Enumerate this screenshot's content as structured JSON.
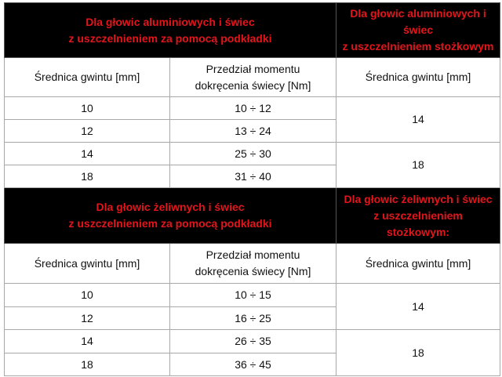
{
  "sections": [
    {
      "left_title": [
        "Dla głowic aluminiowych i świec",
        "z uszczelnieniem za pomocą podkładki"
      ],
      "right_title": [
        "Dla głowic aluminiowych i",
        "świec",
        "z uszczelnieniem stożkowym"
      ],
      "col_thread": "Średnica gwintu [mm]",
      "col_torque": [
        "Przedział momentu",
        "dokręcenia świecy [Nm]"
      ],
      "col_right": "Średnica gwintu [mm]",
      "rows": [
        {
          "d": "10",
          "t": "10 ÷ 12"
        },
        {
          "d": "12",
          "t": "13 ÷ 24"
        },
        {
          "d": "14",
          "t": "25 ÷ 30"
        },
        {
          "d": "18",
          "t": "31 ÷ 40"
        }
      ],
      "right_values": [
        "14",
        "18"
      ]
    },
    {
      "left_title": [
        "Dla głowic żeliwnych i świec",
        "z uszczelnieniem za pomocą podkładki"
      ],
      "right_title": [
        "Dla głowic żeliwnych i świec",
        "z uszczelnieniem",
        "stożkowym:"
      ],
      "col_thread": "Średnica gwintu [mm]",
      "col_torque": [
        "Przedział momentu",
        "dokręcenia świecy [Nm]"
      ],
      "col_right": "Średnica gwintu [mm]",
      "rows": [
        {
          "d": "10",
          "t": "10 ÷ 15"
        },
        {
          "d": "12",
          "t": "16 ÷ 25"
        },
        {
          "d": "14",
          "t": "26 ÷ 35"
        },
        {
          "d": "18",
          "t": "36 ÷ 45"
        }
      ],
      "right_values": [
        "14",
        "18"
      ]
    }
  ],
  "colors": {
    "header_bg": "#000000",
    "header_text": "#e3151b",
    "border": "#a8a8a8"
  }
}
